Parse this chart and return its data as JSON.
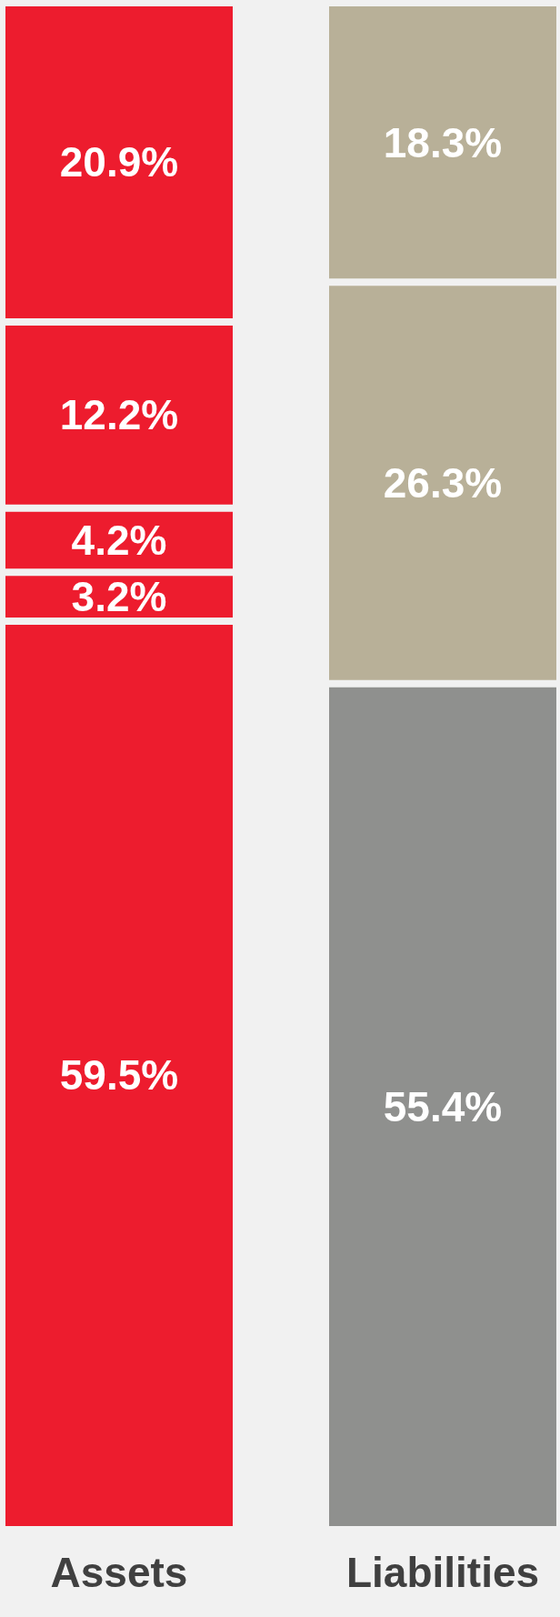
{
  "chart_data": {
    "type": "bar",
    "stacked": true,
    "categories": [
      "Assets",
      "Liabilities"
    ],
    "ylim": [
      0,
      100
    ],
    "series": [
      {
        "colors": [
          "#ed1c2e",
          "#8f908e"
        ],
        "values": [
          59.5,
          55.4
        ],
        "value_labels": [
          "59.5%",
          "55.4%"
        ]
      },
      {
        "colors": [
          "#ed1c2e",
          "#b8b098"
        ],
        "values": [
          3.2,
          26.3
        ],
        "value_labels": [
          "3.2%",
          "26.3%"
        ]
      },
      {
        "colors": [
          "#ed1c2e",
          "#b8b098"
        ],
        "values": [
          4.2,
          18.3
        ],
        "value_labels": [
          "4.2%",
          "18.3%"
        ]
      },
      {
        "colors": [
          "#ed1c2e",
          null
        ],
        "values": [
          12.2,
          null
        ],
        "value_labels": [
          "12.2%",
          null
        ]
      },
      {
        "colors": [
          "#ed1c2e",
          null
        ],
        "values": [
          20.9,
          null
        ],
        "value_labels": [
          "20.9%",
          null
        ]
      }
    ]
  }
}
